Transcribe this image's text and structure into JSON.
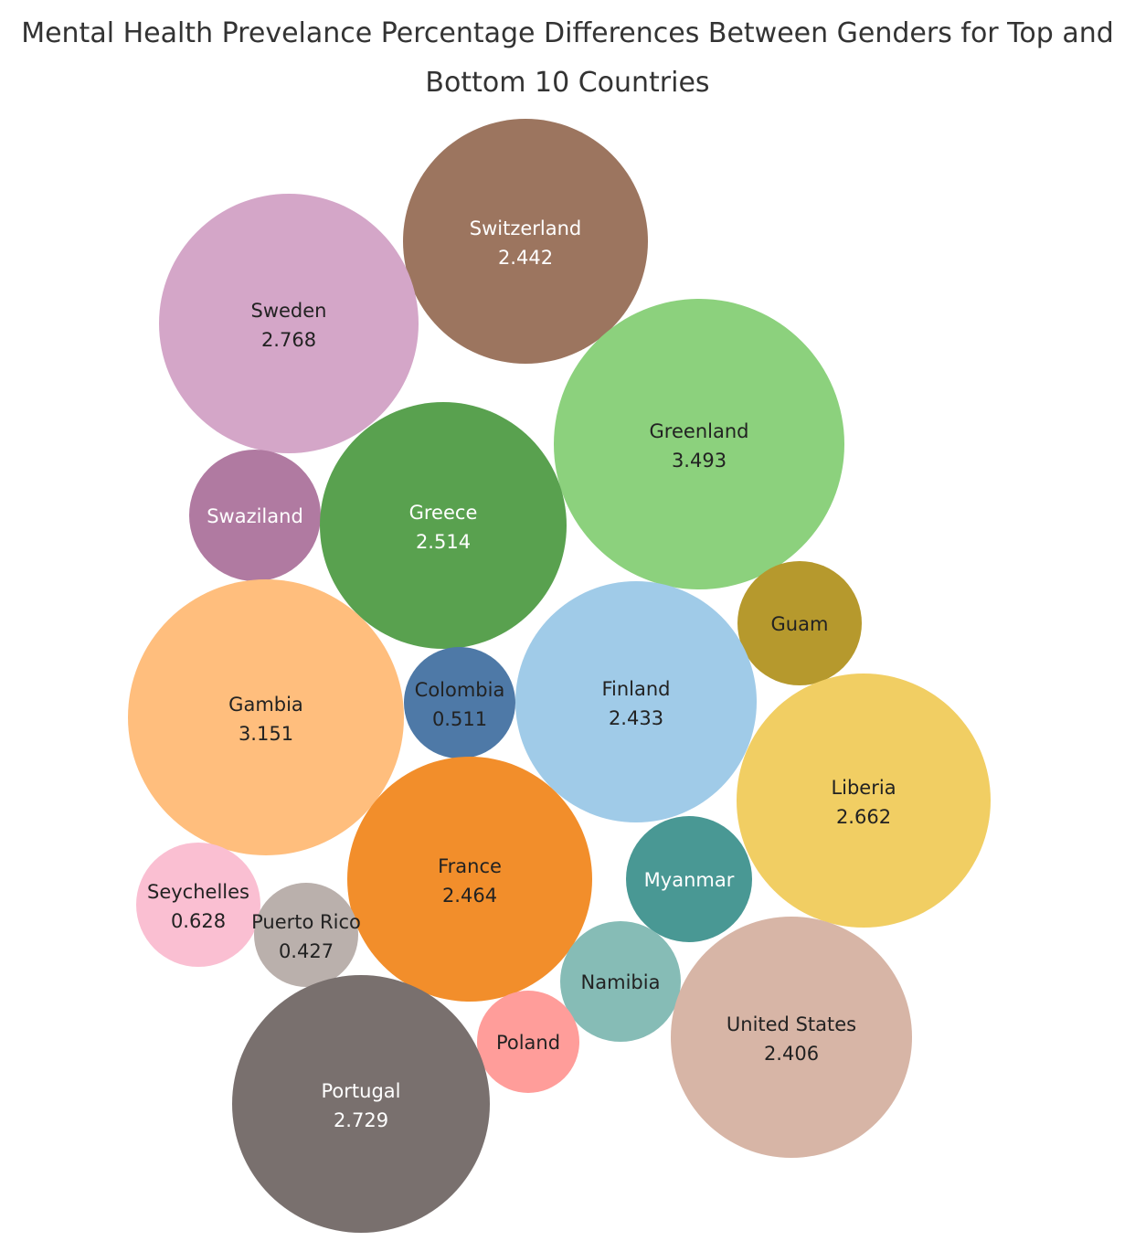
{
  "chart_data": {
    "type": "bubble",
    "title_line1": "Mental Health Prevelance Percentage Differences Between Genders for Top and",
    "title_line2": "Bottom 10 Countries",
    "items": [
      {
        "name": "Switzerland",
        "value": "2.442",
        "color": "#9c755f",
        "text_color": "#ffffff"
      },
      {
        "name": "Sweden",
        "value": "2.768",
        "color": "#d4a6c8",
        "text_color": "#222222"
      },
      {
        "name": "Greenland",
        "value": "3.493",
        "color": "#8cd17d",
        "text_color": "#222222"
      },
      {
        "name": "Swaziland",
        "value": "",
        "color": "#b07aa1",
        "text_color": "#ffffff"
      },
      {
        "name": "Greece",
        "value": "2.514",
        "color": "#59a14f",
        "text_color": "#ffffff"
      },
      {
        "name": "Guam",
        "value": "",
        "color": "#b6992d",
        "text_color": "#222222"
      },
      {
        "name": "Gambia",
        "value": "3.151",
        "color": "#ffbe7d",
        "text_color": "#222222"
      },
      {
        "name": "Colombia",
        "value": "0.511",
        "color": "#4e79a7",
        "text_color": "#222222"
      },
      {
        "name": "Finland",
        "value": "2.433",
        "color": "#a0cbe8",
        "text_color": "#222222"
      },
      {
        "name": "Liberia",
        "value": "2.662",
        "color": "#f1ce63",
        "text_color": "#222222"
      },
      {
        "name": "France",
        "value": "2.464",
        "color": "#f28e2b",
        "text_color": "#222222"
      },
      {
        "name": "Myanmar",
        "value": "",
        "color": "#499894",
        "text_color": "#ffffff"
      },
      {
        "name": "Seychelles",
        "value": "0.628",
        "color": "#fabfd2",
        "text_color": "#222222"
      },
      {
        "name": "Puerto Rico",
        "value": "0.427",
        "color": "#bab0ac",
        "text_color": "#222222"
      },
      {
        "name": "Namibia",
        "value": "",
        "color": "#86bcb6",
        "text_color": "#222222"
      },
      {
        "name": "United States",
        "value": "2.406",
        "color": "#d7b5a6",
        "text_color": "#222222"
      },
      {
        "name": "Poland",
        "value": "",
        "color": "#ff9d9a",
        "text_color": "#222222"
      },
      {
        "name": "Portugal",
        "value": "2.729",
        "color": "#79706e",
        "text_color": "#ffffff"
      }
    ]
  }
}
